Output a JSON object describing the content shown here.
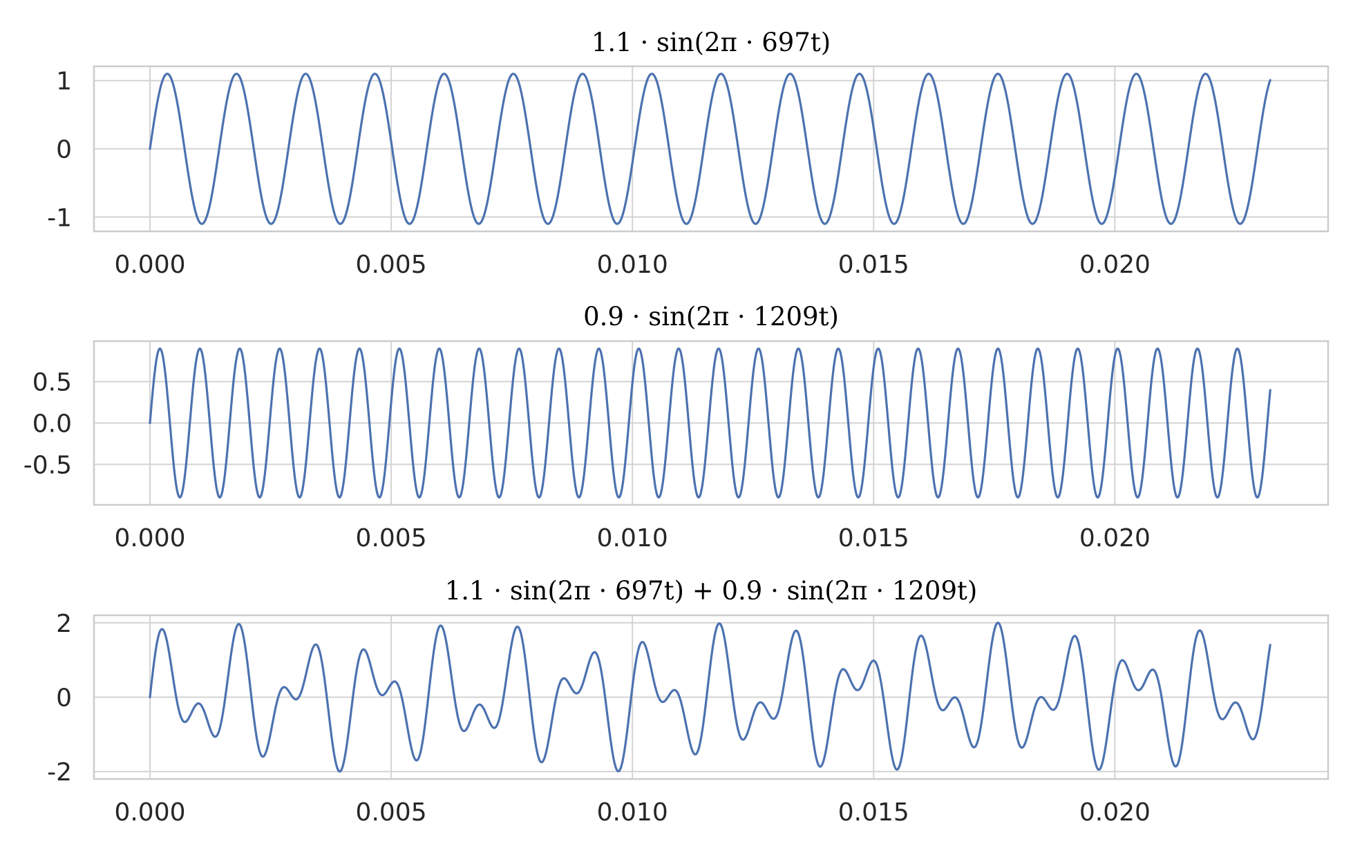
{
  "chart_data": [
    {
      "type": "line",
      "title": "1.1 · sin(2π · 697t)",
      "xlabel": "",
      "ylabel": "",
      "xlim": [
        -0.00116,
        0.02442
      ],
      "ylim": [
        -1.21,
        1.21
      ],
      "grid": true,
      "xticks": [
        0.0,
        0.005,
        0.01,
        0.015,
        0.02
      ],
      "xtick_labels": [
        "0.000",
        "0.005",
        "0.010",
        "0.015",
        "0.020"
      ],
      "yticks": [
        1,
        0,
        -1
      ],
      "ytick_labels": [
        "1",
        "0",
        "-1"
      ],
      "series": [
        {
          "components": [
            {
              "amplitude": 1.1,
              "frequency_hz": 697
            }
          ],
          "t_start": 0.0,
          "t_end": 0.02322,
          "color": "#4c72b0"
        }
      ]
    },
    {
      "type": "line",
      "title": "0.9 · sin(2π · 1209t)",
      "xlabel": "",
      "ylabel": "",
      "xlim": [
        -0.00116,
        0.02442
      ],
      "ylim": [
        -0.99,
        0.99
      ],
      "grid": true,
      "xticks": [
        0.0,
        0.005,
        0.01,
        0.015,
        0.02
      ],
      "xtick_labels": [
        "0.000",
        "0.005",
        "0.010",
        "0.015",
        "0.020"
      ],
      "yticks": [
        0.5,
        0.0,
        -0.5
      ],
      "ytick_labels": [
        "0.5",
        "0.0",
        "-0.5"
      ],
      "series": [
        {
          "components": [
            {
              "amplitude": 0.9,
              "frequency_hz": 1209
            }
          ],
          "t_start": 0.0,
          "t_end": 0.02322,
          "color": "#4c72b0"
        }
      ]
    },
    {
      "type": "line",
      "title": "1.1 · sin(2π · 697t) + 0.9 · sin(2π · 1209t)",
      "xlabel": "",
      "ylabel": "",
      "xlim": [
        -0.00116,
        0.02442
      ],
      "ylim": [
        -2.2,
        2.2
      ],
      "grid": true,
      "xticks": [
        0.0,
        0.005,
        0.01,
        0.015,
        0.02
      ],
      "xtick_labels": [
        "0.000",
        "0.005",
        "0.010",
        "0.015",
        "0.020"
      ],
      "yticks": [
        2,
        0,
        -2
      ],
      "ytick_labels": [
        "2",
        "0",
        "-2"
      ],
      "series": [
        {
          "components": [
            {
              "amplitude": 1.1,
              "frequency_hz": 697
            },
            {
              "amplitude": 0.9,
              "frequency_hz": 1209
            }
          ],
          "t_start": 0.0,
          "t_end": 0.02322,
          "color": "#4c72b0"
        }
      ]
    }
  ],
  "style": {
    "line_color": "#4c72b0",
    "grid_color": "#d3d3d3",
    "axes_edge_color": "#cccccc",
    "text_color": "#262626"
  }
}
